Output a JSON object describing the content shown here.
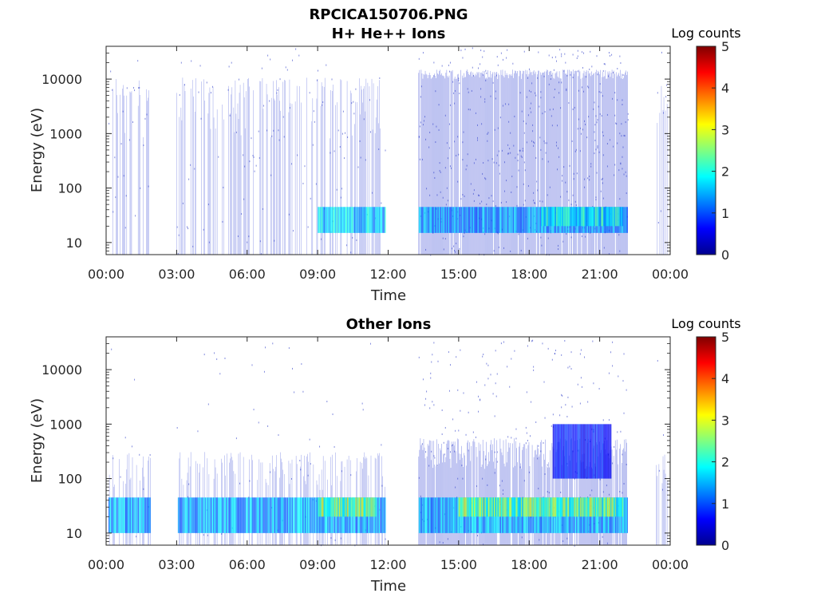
{
  "figure_title": "RPCICA150706.PNG",
  "chart_data": [
    {
      "type": "heatmap",
      "title": "H+ He++ Ions",
      "xlabel": "Time",
      "ylabel": "Energy (eV)",
      "y_scale": "log",
      "xlim": [
        0,
        24
      ],
      "ylim": [
        6,
        40000
      ],
      "x_ticks": [
        0,
        3,
        6,
        9,
        12,
        15,
        18,
        21,
        24
      ],
      "x_tick_labels": [
        "00:00",
        "03:00",
        "06:00",
        "09:00",
        "12:00",
        "15:00",
        "18:00",
        "21:00",
        "00:00"
      ],
      "y_ticks": [
        10,
        100,
        1000,
        10000
      ],
      "y_tick_labels": [
        "10",
        "100",
        "1000",
        "10000"
      ],
      "colorbar": {
        "label": "Log counts",
        "range": [
          0,
          5
        ],
        "ticks": [
          "0",
          "1",
          "2",
          "3",
          "4",
          "5"
        ],
        "colormap": "jet"
      },
      "data_intervals_hours": [
        [
          0.1,
          1.9
        ],
        [
          3.0,
          11.9
        ],
        [
          13.3,
          22.2
        ],
        [
          23.4,
          23.9
        ]
      ],
      "dense_intervals_hours": [
        [
          13.3,
          22.2
        ]
      ],
      "features": [
        {
          "t_start": 9.0,
          "t_end": 12.0,
          "energy_low": 15,
          "energy_high": 45,
          "log_counts": 1.8
        },
        {
          "t_start": 13.3,
          "t_end": 22.2,
          "energy_low": 15,
          "energy_high": 45,
          "log_counts": 1.5
        },
        {
          "t_start": 18.5,
          "t_end": 22.0,
          "energy_low": 20,
          "energy_high": 45,
          "log_counts": 2.0
        }
      ]
    },
    {
      "type": "heatmap",
      "title": "Other Ions",
      "xlabel": "Time",
      "ylabel": "Energy (eV)",
      "y_scale": "log",
      "xlim": [
        0,
        24
      ],
      "ylim": [
        6,
        40000
      ],
      "x_ticks": [
        0,
        3,
        6,
        9,
        12,
        15,
        18,
        21,
        24
      ],
      "x_tick_labels": [
        "00:00",
        "03:00",
        "06:00",
        "09:00",
        "12:00",
        "15:00",
        "18:00",
        "21:00",
        "00:00"
      ],
      "y_ticks": [
        10,
        100,
        1000,
        10000
      ],
      "y_tick_labels": [
        "10",
        "100",
        "1000",
        "10000"
      ],
      "colorbar": {
        "label": "Log counts",
        "range": [
          0,
          5
        ],
        "ticks": [
          "0",
          "1",
          "2",
          "3",
          "4",
          "5"
        ],
        "colormap": "jet"
      },
      "data_intervals_hours": [
        [
          0.1,
          1.9
        ],
        [
          3.0,
          11.9
        ],
        [
          13.3,
          22.2
        ],
        [
          23.4,
          23.9
        ]
      ],
      "dense_intervals_hours": [
        [
          13.3,
          22.2
        ]
      ],
      "features": [
        {
          "t_start": 0.1,
          "t_end": 22.2,
          "energy_low": 10,
          "energy_high": 45,
          "log_counts": 1.6
        },
        {
          "t_start": 9.0,
          "t_end": 11.5,
          "energy_low": 20,
          "energy_high": 45,
          "log_counts": 2.8
        },
        {
          "t_start": 15.0,
          "t_end": 22.0,
          "energy_low": 20,
          "energy_high": 45,
          "log_counts": 2.6
        },
        {
          "t_start": 19.0,
          "t_end": 21.5,
          "energy_low": 100,
          "energy_high": 1000,
          "log_counts": 0.8
        }
      ]
    }
  ]
}
